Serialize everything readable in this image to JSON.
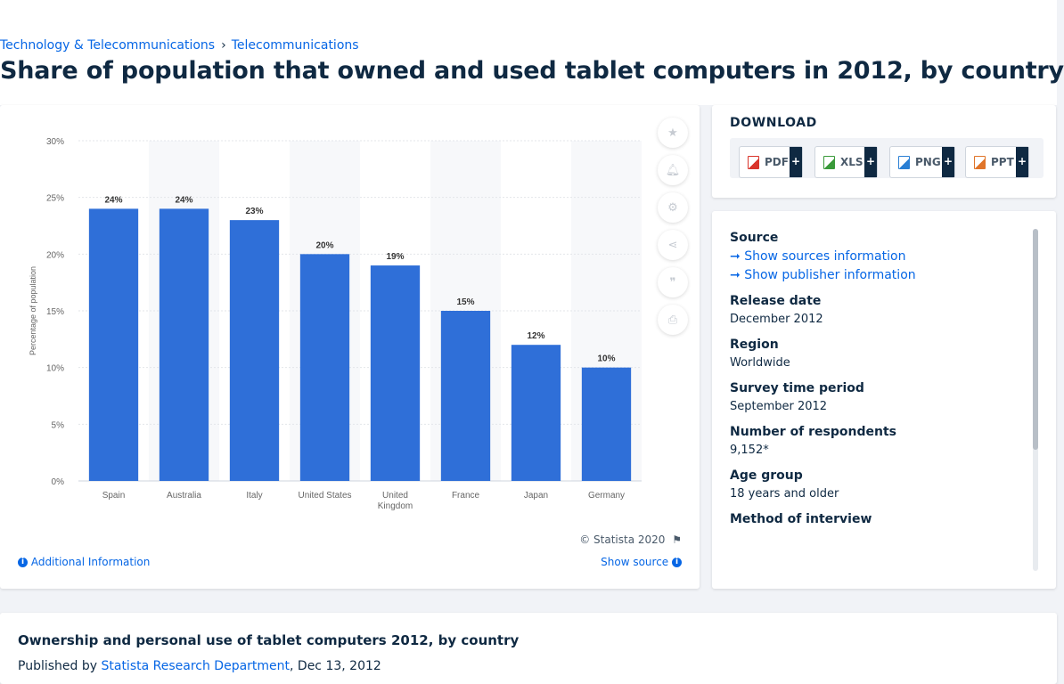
{
  "breadcrumb": {
    "items": [
      "Technology & Telecommunications",
      "Telecommunications"
    ],
    "separator": "›"
  },
  "page_title": "Share of population that owned and used tablet computers in 2012, by country",
  "chart_data": {
    "type": "bar",
    "categories": [
      "Spain",
      "Australia",
      "Italy",
      "United States",
      "United Kingdom",
      "France",
      "Japan",
      "Germany"
    ],
    "values": [
      24,
      24,
      23,
      20,
      19,
      15,
      12,
      10
    ],
    "value_labels": [
      "24%",
      "24%",
      "23%",
      "20%",
      "19%",
      "15%",
      "12%",
      "10%"
    ],
    "ylabel": "Percentage of population",
    "ylim": [
      0,
      30
    ],
    "yticks": [
      0,
      5,
      10,
      15,
      20,
      25,
      30
    ],
    "ytick_labels": [
      "0%",
      "5%",
      "10%",
      "15%",
      "20%",
      "25%",
      "30%"
    ],
    "grid": true,
    "bar_color": "#2f6fd8"
  },
  "chart_card": {
    "copyright": "© Statista 2020",
    "additional_info": "Additional Information",
    "show_source": "Show source",
    "tools": [
      "star-icon",
      "bell-icon",
      "gear-icon",
      "share-icon",
      "quote-icon",
      "print-icon"
    ]
  },
  "download": {
    "title": "DOWNLOAD",
    "buttons": [
      {
        "label": "PDF",
        "color": "#d9342b"
      },
      {
        "label": "XLS",
        "color": "#3a9a3a"
      },
      {
        "label": "PNG",
        "color": "#2a7fd4"
      },
      {
        "label": "PPT",
        "color": "#e0752a"
      }
    ],
    "plus": "+"
  },
  "info": {
    "source_label": "Source",
    "show_sources": "Show sources information",
    "show_publisher": "Show publisher information",
    "release_label": "Release date",
    "release_value": "December 2012",
    "region_label": "Region",
    "region_value": "Worldwide",
    "survey_label": "Survey time period",
    "survey_value": "September 2012",
    "respondents_label": "Number of respondents",
    "respondents_value": "9,152*",
    "age_label": "Age group",
    "age_value": "18 years and older",
    "method_label": "Method of interview"
  },
  "bottom": {
    "title": "Ownership and personal use of tablet computers 2012, by country",
    "published_prefix": "Published by ",
    "publisher": "Statista Research Department",
    "date": ", Dec 13, 2012"
  }
}
